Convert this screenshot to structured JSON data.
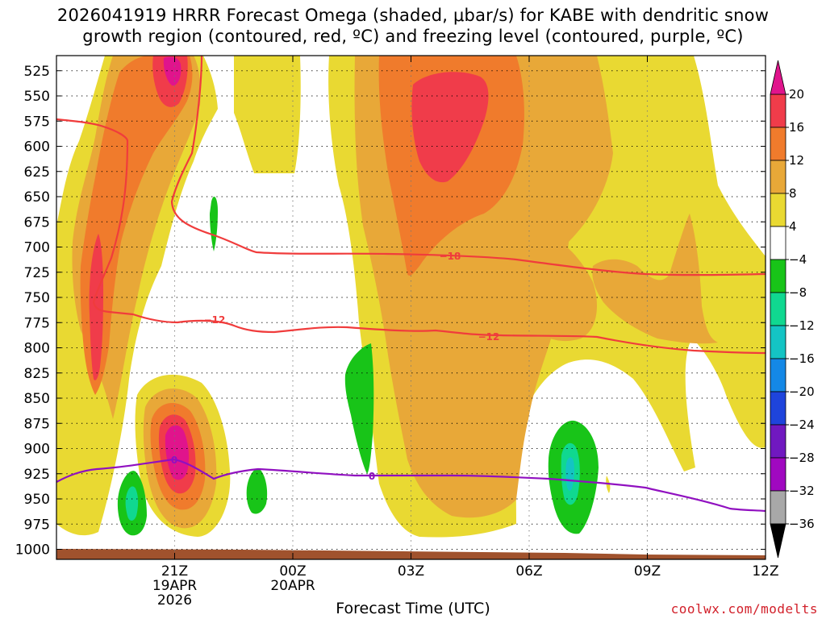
{
  "title": {
    "line1": "2026041919 HRRR Forecast Omega (shaded, μbar/s) for KABE with dendritic snow",
    "line2": "growth region (contoured, red, ºC) and freezing level (contoured, purple, ºC)"
  },
  "credit": "coolwx.com/modelts",
  "chart_data": {
    "type": "heatmap",
    "xlabel": "Forecast Time (UTC)",
    "ylabel": "",
    "x_range_hours": [
      -3,
      15
    ],
    "ylim": [
      1010,
      510
    ],
    "y_ticks": [
      525,
      550,
      575,
      600,
      625,
      650,
      675,
      700,
      725,
      750,
      775,
      800,
      825,
      850,
      875,
      900,
      925,
      950,
      975,
      1000
    ],
    "x_ticks": [
      {
        "hour": 0,
        "line1": "21Z",
        "line2": "19APR",
        "line3": "2026"
      },
      {
        "hour": 3,
        "line1": "00Z",
        "line2": "20APR",
        "line3": ""
      },
      {
        "hour": 6,
        "line1": "03Z",
        "line2": "",
        "line3": ""
      },
      {
        "hour": 9,
        "line1": "06Z",
        "line2": "",
        "line3": ""
      },
      {
        "hour": 12,
        "line1": "09Z",
        "line2": "",
        "line3": ""
      },
      {
        "hour": 15,
        "line1": "12Z",
        "line2": "",
        "line3": ""
      }
    ],
    "colorbar": {
      "labels": [
        "20",
        "16",
        "12",
        "8",
        "4",
        "−4",
        "−8",
        "−12",
        "−16",
        "−20",
        "−24",
        "−28",
        "−32",
        "−36"
      ],
      "colors": [
        "#f03c4a",
        "#f07b2c",
        "#e8a838",
        "#e9d932",
        "#ffffff",
        "#18c418",
        "#10d890",
        "#14c4c4",
        "#1488e6",
        "#1e44dc",
        "#7018c0",
        "#a008c0",
        "#a8a8a8"
      ],
      "over_color": "#e0148c",
      "under_color": "#000000"
    },
    "contours": [
      {
        "name": "DGZ upper",
        "color": "#f03c3c",
        "label": "−18",
        "level_c": -18
      },
      {
        "name": "DGZ lower",
        "color": "#f03c3c",
        "label": "−12",
        "level_c": -12
      },
      {
        "name": "Freezing level",
        "color": "#9010c0",
        "label": "0",
        "level_c": 0
      }
    ],
    "surface_color": "#a0522d"
  }
}
